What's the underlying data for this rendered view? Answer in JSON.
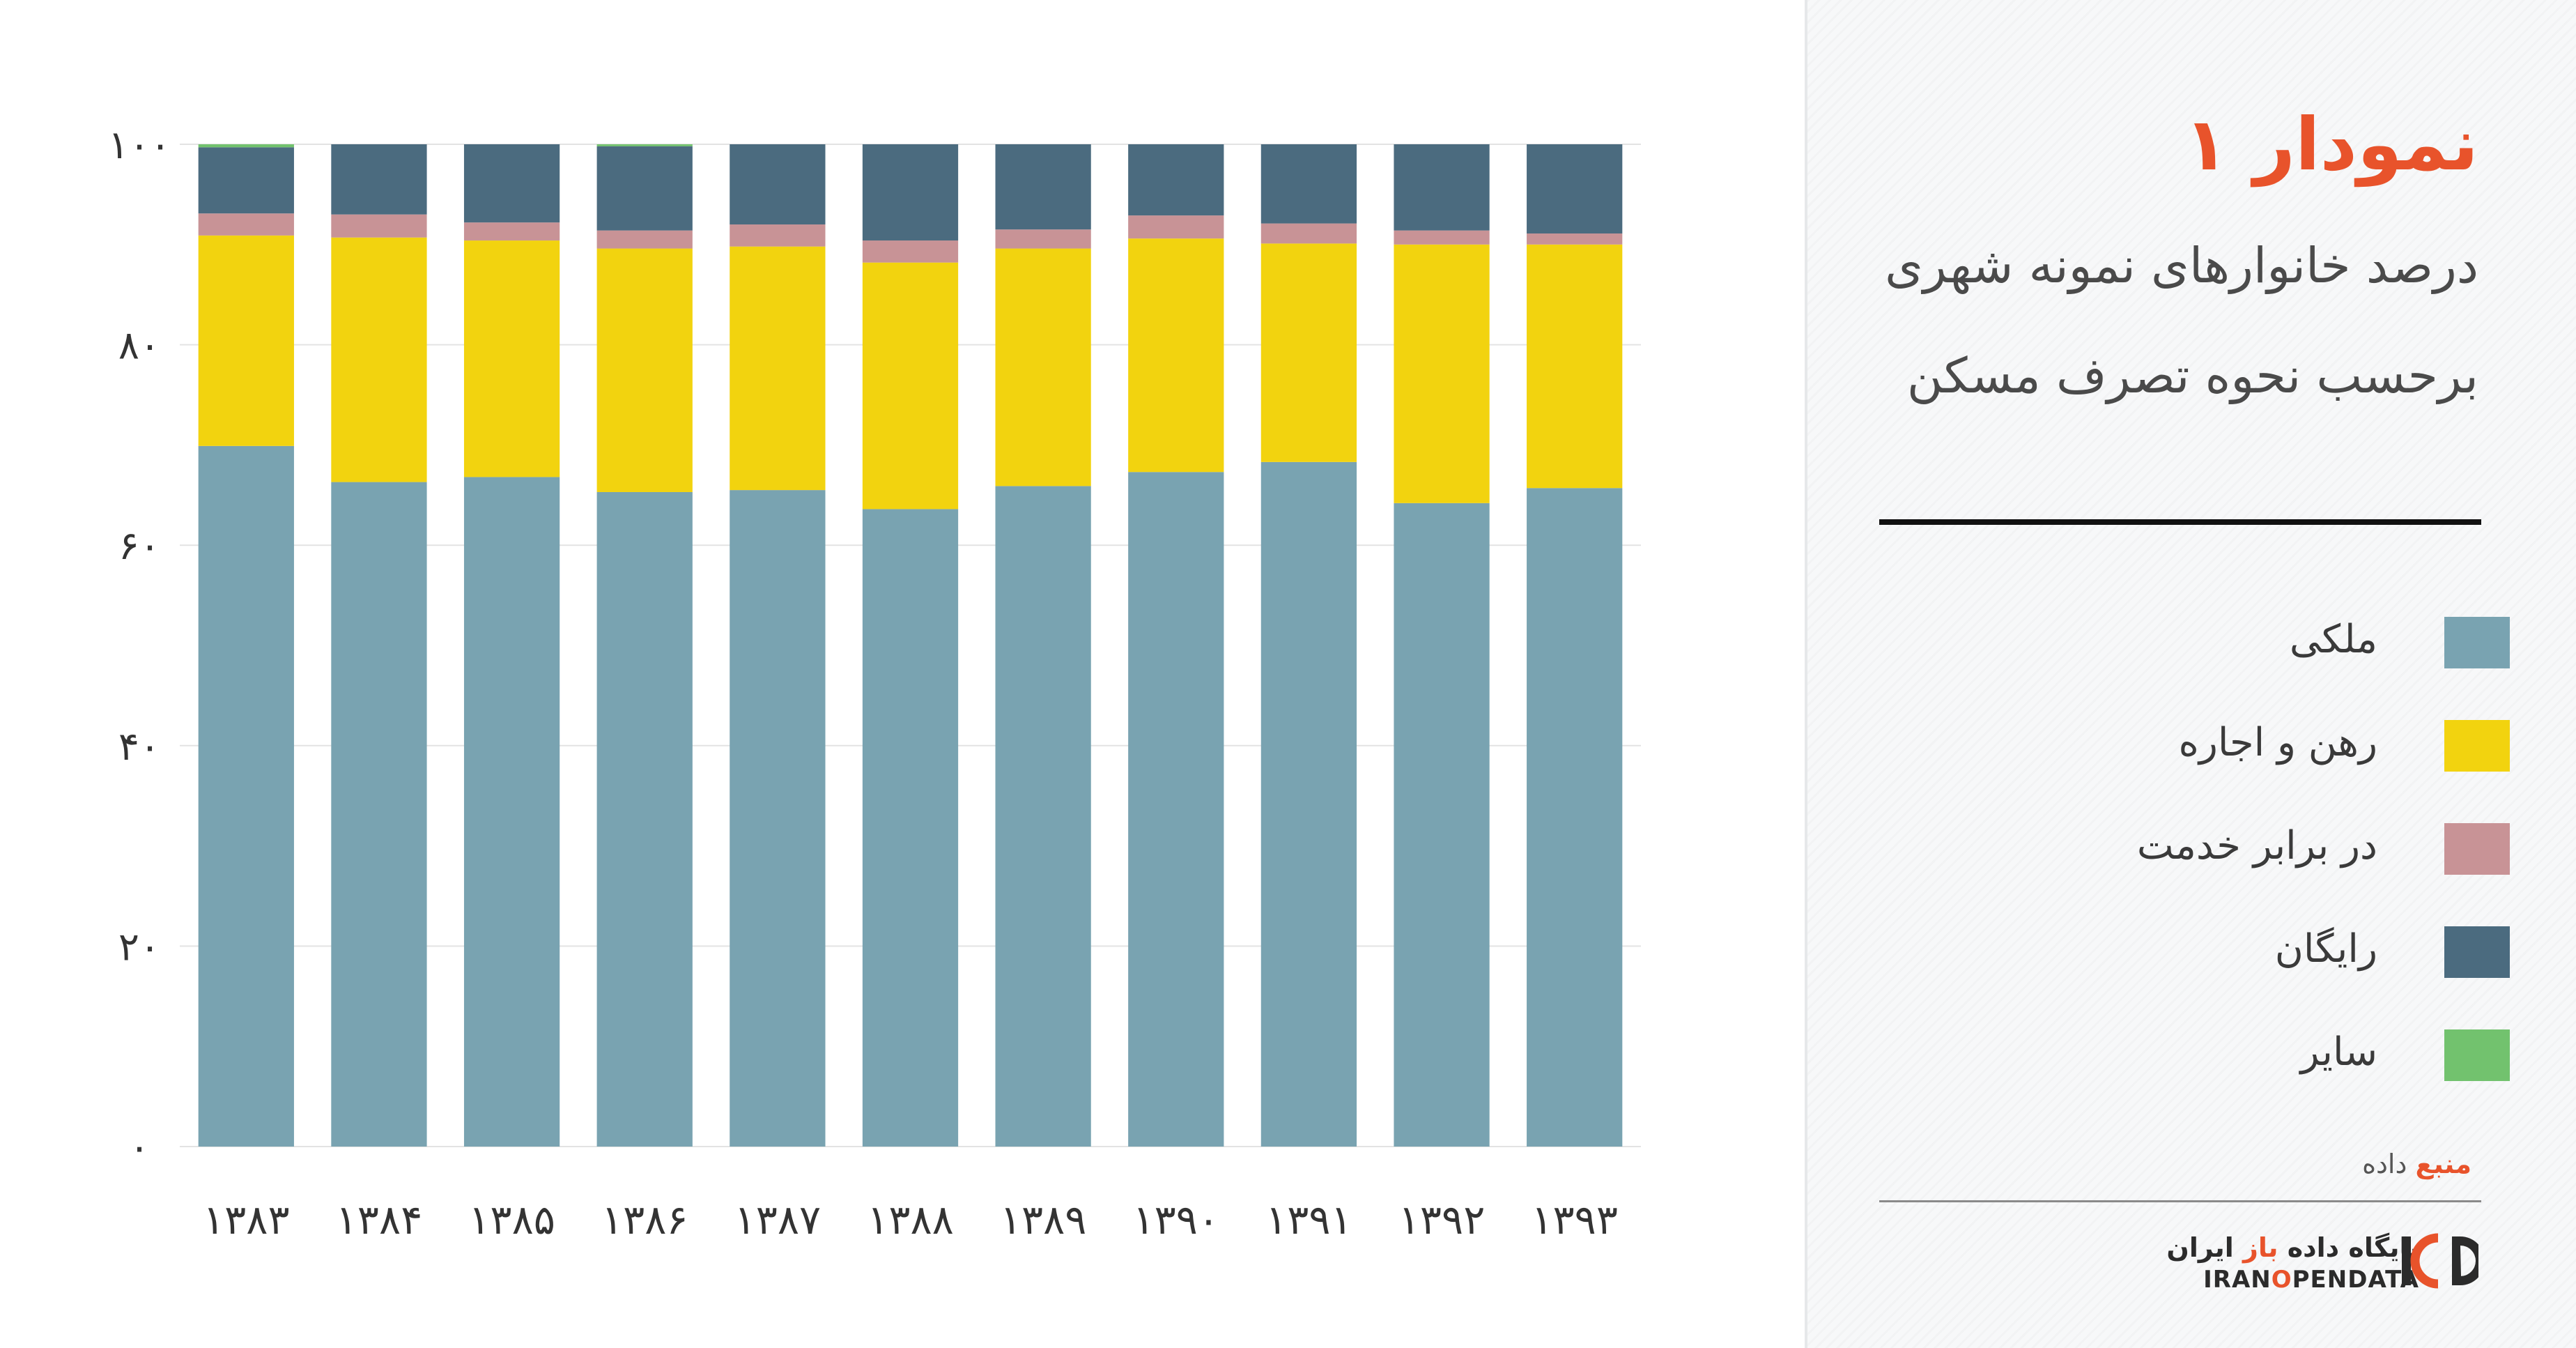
{
  "panel": {
    "title": "نمودار ۱",
    "subtitle_line1": "درصد خانوارهای نمونه شهری",
    "subtitle_line2": "برحسب نحوه تصرف مسکن",
    "source_prefix": "منبع",
    "source_rest": " داده",
    "brand_fa_prefix": "پایگاه داده ",
    "brand_fa_accent": "باز",
    "brand_fa_suffix": " ایران",
    "brand_en_prefix": "IRAN",
    "brand_en_accent": "O",
    "brand_en_suffix": "PENDATA",
    "logo_icon": "iod-logo-icon",
    "accent_color": "#e8532b"
  },
  "chart_data": {
    "type": "bar",
    "stacked": true,
    "categories": [
      "۱۳۸۳",
      "۱۳۸۴",
      "۱۳۸۵",
      "۱۳۸۶",
      "۱۳۸۷",
      "۱۳۸۸",
      "۱۳۸۹",
      "۱۳۹۰",
      "۱۳۹۱",
      "۱۳۹۲",
      "۱۳۹۳"
    ],
    "ylim": [
      0,
      100
    ],
    "yticks": [
      0,
      20,
      40,
      60,
      80,
      100
    ],
    "ytick_labels": [
      "۰",
      "۲۰",
      "۴۰",
      "۶۰",
      "۸۰",
      "۱۰۰"
    ],
    "grid": true,
    "legend_position": "right panel",
    "series": [
      {
        "name": "ملکی",
        "color": "#79a3b1",
        "values": [
          69.9,
          66.3,
          66.8,
          65.3,
          65.5,
          63.6,
          65.9,
          67.3,
          68.3,
          64.2,
          65.7
        ]
      },
      {
        "name": "رهن و اجاره",
        "color": "#f2d30f",
        "values": [
          21.0,
          24.4,
          23.6,
          24.3,
          24.3,
          24.6,
          23.7,
          23.3,
          21.8,
          25.8,
          24.3
        ]
      },
      {
        "name": "در برابر خدمت",
        "color": "#c89396",
        "values": [
          2.2,
          2.3,
          1.8,
          1.8,
          2.2,
          2.2,
          1.9,
          2.3,
          2.0,
          1.4,
          1.1
        ]
      },
      {
        "name": "رایگان",
        "color": "#4b6b7f",
        "values": [
          6.6,
          7.0,
          7.8,
          8.4,
          8.0,
          9.6,
          8.5,
          7.1,
          7.9,
          8.6,
          8.9
        ]
      },
      {
        "name": "سایر",
        "color": "#72c26e",
        "values": [
          0.3,
          0.0,
          0.0,
          0.2,
          0.0,
          0.0,
          0.0,
          0.0,
          0.0,
          0.0,
          0.0
        ]
      }
    ]
  }
}
